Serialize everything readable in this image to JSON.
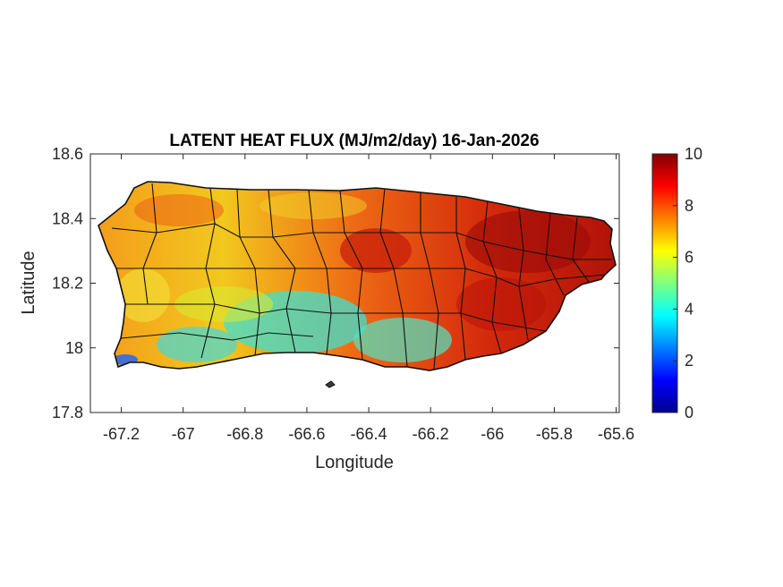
{
  "map": {
    "title": "LATENT HEAT FLUX (MJ/m2/day) 16-Jan-2026",
    "xlabel": "Longitude",
    "ylabel": "Latitude",
    "x_ticks": [
      "-67.2",
      "-67",
      "-66.8",
      "-66.6",
      "-66.4",
      "-66.2",
      "-66",
      "-65.8",
      "-65.6"
    ],
    "x_tick_values": [
      -67.2,
      -67.0,
      -66.8,
      -66.6,
      -66.4,
      -66.2,
      -66.0,
      -65.8,
      -65.6
    ],
    "y_ticks": [
      "18.6",
      "18.4",
      "18.2",
      "18",
      "17.8"
    ],
    "y_tick_values": [
      18.6,
      18.4,
      18.2,
      18.0,
      17.8
    ],
    "xlim": [
      -67.3,
      -65.59
    ],
    "ylim": [
      17.8,
      18.6
    ]
  },
  "colorbar": {
    "ticks": [
      "10",
      "8",
      "6",
      "4",
      "2",
      "0"
    ],
    "tick_values": [
      10,
      8,
      6,
      4,
      2,
      0
    ],
    "range": [
      0,
      10
    ],
    "colormap": "jet"
  }
}
